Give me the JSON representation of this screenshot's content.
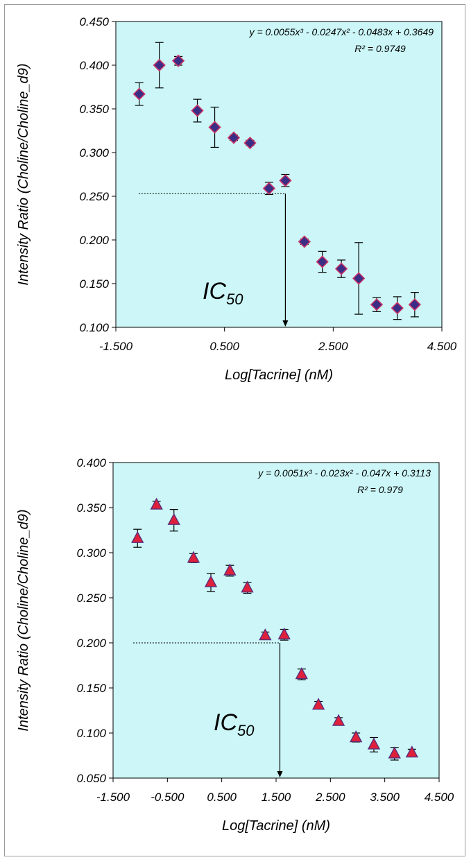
{
  "chart_data": [
    {
      "type": "scatter",
      "xlabel": "Log[Tacrine] (nM)",
      "ylabel": "Intensity Ratio (Choline/Choline_d9)",
      "xlim": [
        -1.5,
        4.5
      ],
      "ylim": [
        0.1,
        0.45
      ],
      "x_ticks": [
        "-1.500",
        "0.500",
        "2.500",
        "4.500"
      ],
      "y_ticks": [
        "0.100",
        "0.150",
        "0.200",
        "0.250",
        "0.300",
        "0.350",
        "0.400",
        "0.450"
      ],
      "equation": "y = 0.0055x³ - 0.0247x² - 0.0483x + 0.3649",
      "r_squared": "R² = 0.9749",
      "annotation": {
        "label": "IC",
        "subscript": "50",
        "x": 1.62,
        "y": 0.253
      },
      "marker": "diamond",
      "marker_color": "#3a2d86",
      "marker_edge": "#cc3366",
      "background": "#ccf6f7",
      "fit": {
        "x_range": [
          -1.07,
          4.05
        ]
      },
      "points": [
        {
          "x": -1.07,
          "y": 0.367,
          "err": 0.013
        },
        {
          "x": -0.7,
          "y": 0.4,
          "err": 0.026
        },
        {
          "x": -0.35,
          "y": 0.405,
          "err": 0.005
        },
        {
          "x": 0.0,
          "y": 0.348,
          "err": 0.013
        },
        {
          "x": 0.32,
          "y": 0.329,
          "err": 0.023
        },
        {
          "x": 0.67,
          "y": 0.317,
          "err": 0.003
        },
        {
          "x": 0.97,
          "y": 0.311,
          "err": 0.003
        },
        {
          "x": 1.32,
          "y": 0.259,
          "err": 0.007
        },
        {
          "x": 1.62,
          "y": 0.268,
          "err": 0.007
        },
        {
          "x": 1.97,
          "y": 0.198,
          "err": 0.003
        },
        {
          "x": 2.3,
          "y": 0.175,
          "err": 0.012
        },
        {
          "x": 2.65,
          "y": 0.167,
          "err": 0.01
        },
        {
          "x": 2.97,
          "y": 0.156,
          "err": 0.041
        },
        {
          "x": 3.3,
          "y": 0.126,
          "err": 0.008
        },
        {
          "x": 3.68,
          "y": 0.122,
          "err": 0.013
        },
        {
          "x": 4.0,
          "y": 0.126,
          "err": 0.014
        }
      ]
    },
    {
      "type": "scatter",
      "xlabel": "Log[Tacrine] (nM)",
      "ylabel": "Intensity Ratio (Choline/Choline_d9)",
      "xlim": [
        -1.5,
        4.5
      ],
      "ylim": [
        0.05,
        0.4
      ],
      "x_ticks": [
        "-1.500",
        "-0.500",
        "0.500",
        "1.500",
        "2.500",
        "3.500",
        "4.500"
      ],
      "y_ticks": [
        "0.050",
        "0.100",
        "0.150",
        "0.200",
        "0.250",
        "0.300",
        "0.350",
        "0.400"
      ],
      "equation": "y = 0.0051x³ - 0.023x² - 0.047x + 0.3113",
      "r_squared": "R² = 0.979",
      "annotation": {
        "label": "IC",
        "subscript": "50",
        "x": 1.57,
        "y": 0.2
      },
      "marker": "triangle",
      "marker_color": "#e0203a",
      "marker_edge": "#5a2d7a",
      "background": "#ccf6f7",
      "fit": {
        "x_range": [
          -1.05,
          4.05
        ]
      },
      "points": [
        {
          "x": -1.05,
          "y": 0.316,
          "err": 0.01
        },
        {
          "x": -0.7,
          "y": 0.353,
          "err": 0.004
        },
        {
          "x": -0.38,
          "y": 0.336,
          "err": 0.012
        },
        {
          "x": -0.02,
          "y": 0.294,
          "err": 0.005
        },
        {
          "x": 0.3,
          "y": 0.267,
          "err": 0.01
        },
        {
          "x": 0.65,
          "y": 0.28,
          "err": 0.006
        },
        {
          "x": 0.97,
          "y": 0.261,
          "err": 0.006
        },
        {
          "x": 1.3,
          "y": 0.208,
          "err": 0.004
        },
        {
          "x": 1.65,
          "y": 0.209,
          "err": 0.006
        },
        {
          "x": 1.97,
          "y": 0.165,
          "err": 0.006
        },
        {
          "x": 2.28,
          "y": 0.131,
          "err": 0.004
        },
        {
          "x": 2.65,
          "y": 0.113,
          "err": 0.004
        },
        {
          "x": 2.97,
          "y": 0.095,
          "err": 0.005
        },
        {
          "x": 3.3,
          "y": 0.087,
          "err": 0.008
        },
        {
          "x": 3.68,
          "y": 0.077,
          "err": 0.007
        },
        {
          "x": 4.0,
          "y": 0.078,
          "err": 0.004
        }
      ]
    }
  ]
}
